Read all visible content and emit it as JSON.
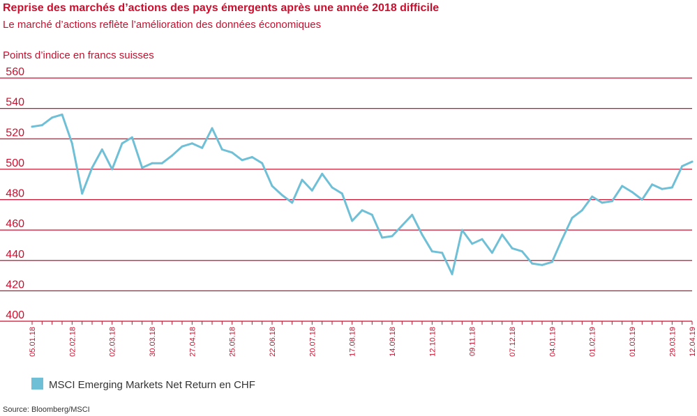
{
  "chart_data": {
    "type": "line",
    "title": "Reprise des marchés d’actions des pays émergents après une année 2018 difficile",
    "subtitle": "Le marché d’actions reflète l’amélioration des données économiques",
    "ylabel": "Points d’indice en francs suisses",
    "ylim": [
      400,
      560
    ],
    "yticks": [
      400,
      420,
      440,
      460,
      480,
      500,
      520,
      540,
      560
    ],
    "grid": true,
    "legend_position": "bottom-left",
    "source": "Source: Bloomberg/MSCI",
    "x_tick_labels": [
      "05.01.18",
      "02.02.18",
      "02.03.18",
      "30.03.18",
      "27.04.18",
      "25.05.18",
      "22.06.18",
      "20.07.18",
      "17.08.18",
      "14.09.18",
      "12.10.18",
      "09.11.18",
      "07.12.18",
      "04.01.19",
      "01.02.19",
      "01.03.19",
      "29.03.19",
      "12.04.19"
    ],
    "x": [
      "05.01.18",
      "12.01.18",
      "19.01.18",
      "26.01.18",
      "02.02.18",
      "09.02.18",
      "16.02.18",
      "23.02.18",
      "02.03.18",
      "09.03.18",
      "16.03.18",
      "23.03.18",
      "30.03.18",
      "06.04.18",
      "13.04.18",
      "20.04.18",
      "27.04.18",
      "04.05.18",
      "11.05.18",
      "18.05.18",
      "25.05.18",
      "01.06.18",
      "08.06.18",
      "15.06.18",
      "22.06.18",
      "29.06.18",
      "06.07.18",
      "13.07.18",
      "20.07.18",
      "27.07.18",
      "03.08.18",
      "10.08.18",
      "17.08.18",
      "24.08.18",
      "31.08.18",
      "07.09.18",
      "14.09.18",
      "21.09.18",
      "28.09.18",
      "05.10.18",
      "12.10.18",
      "19.10.18",
      "26.10.18",
      "02.11.18",
      "09.11.18",
      "16.11.18",
      "23.11.18",
      "30.11.18",
      "07.12.18",
      "14.12.18",
      "21.12.18",
      "28.12.18",
      "04.01.19",
      "11.01.19",
      "18.01.19",
      "25.01.19",
      "01.02.19",
      "08.02.19",
      "15.02.19",
      "22.02.19",
      "01.03.19",
      "08.03.19",
      "15.03.19",
      "22.03.19",
      "29.03.19",
      "05.04.19",
      "12.04.19"
    ],
    "series": [
      {
        "name": "MSCI Emerging Markets Net Return en CHF",
        "color": "#6fc0d6",
        "values": [
          528,
          529,
          534,
          536,
          517,
          484,
          501,
          513,
          500,
          517,
          521,
          501,
          504,
          504,
          509,
          515,
          517,
          514,
          527,
          513,
          511,
          506,
          508,
          504,
          489,
          483,
          478,
          493,
          486,
          497,
          488,
          484,
          466,
          473,
          470,
          455,
          456,
          463,
          470,
          457,
          446,
          445,
          431,
          460,
          451,
          454,
          445,
          457,
          448,
          446,
          438,
          437,
          439,
          454,
          468,
          473,
          482,
          478,
          479,
          489,
          485,
          480,
          490,
          487,
          488,
          502,
          505
        ]
      }
    ]
  },
  "colors": {
    "text": "#c8102e",
    "grid": "#c8102e",
    "line": "#6fc0d6"
  }
}
